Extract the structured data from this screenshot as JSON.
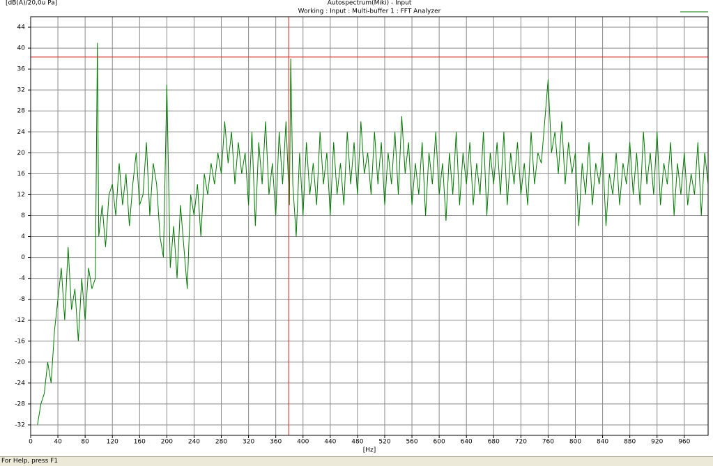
{
  "chart_data": {
    "type": "line",
    "unit_label": "[dB(A)/20,0u Pa]",
    "title": "Autospectrum(Miki) - Input",
    "subtitle": "Working : Input : Multi-buffer 1 : FFT Analyzer",
    "x_label": "[Hz]",
    "xlim": [
      0,
      995
    ],
    "ylim": [
      -34,
      46
    ],
    "xticks": [
      0,
      40,
      80,
      120,
      160,
      200,
      240,
      280,
      320,
      360,
      400,
      440,
      480,
      520,
      560,
      600,
      640,
      680,
      720,
      760,
      800,
      840,
      880,
      920,
      960
    ],
    "yticks": [
      -32,
      -28,
      -24,
      -20,
      -16,
      -12,
      -8,
      -4,
      0,
      4,
      8,
      12,
      16,
      20,
      24,
      28,
      32,
      36,
      40,
      44
    ],
    "grid": true,
    "cursor": {
      "x": 379,
      "y": 38.3,
      "color": "#d42020"
    },
    "x": [
      10,
      15,
      20,
      25,
      30,
      35,
      40,
      45,
      50,
      55,
      60,
      65,
      70,
      75,
      80,
      85,
      90,
      95,
      98,
      100,
      105,
      110,
      115,
      120,
      125,
      130,
      135,
      140,
      145,
      150,
      155,
      160,
      165,
      170,
      175,
      180,
      185,
      190,
      195,
      200,
      205,
      210,
      215,
      220,
      225,
      230,
      235,
      240,
      245,
      250,
      255,
      260,
      265,
      270,
      275,
      280,
      285,
      290,
      295,
      300,
      305,
      310,
      315,
      320,
      325,
      330,
      335,
      340,
      345,
      350,
      355,
      360,
      365,
      370,
      375,
      380,
      382,
      385,
      390,
      395,
      400,
      405,
      410,
      415,
      420,
      425,
      430,
      435,
      440,
      445,
      450,
      455,
      460,
      465,
      470,
      475,
      480,
      485,
      490,
      495,
      500,
      505,
      510,
      515,
      520,
      525,
      530,
      535,
      540,
      545,
      550,
      555,
      560,
      565,
      570,
      575,
      580,
      585,
      590,
      595,
      600,
      605,
      610,
      615,
      620,
      625,
      630,
      635,
      640,
      645,
      650,
      655,
      660,
      665,
      670,
      675,
      680,
      685,
      690,
      695,
      700,
      705,
      710,
      715,
      720,
      725,
      730,
      735,
      740,
      745,
      750,
      755,
      760,
      765,
      770,
      775,
      780,
      785,
      790,
      795,
      800,
      805,
      810,
      815,
      820,
      825,
      830,
      835,
      840,
      845,
      850,
      855,
      860,
      865,
      870,
      875,
      880,
      885,
      890,
      895,
      900,
      905,
      910,
      915,
      920,
      925,
      930,
      935,
      940,
      945,
      950,
      955,
      960,
      965,
      970,
      975,
      980,
      985,
      990,
      995
    ],
    "series": [
      {
        "color": "#007a00",
        "values": [
          -32,
          -28,
          -26,
          -20,
          -24,
          -14,
          -8,
          -2,
          -12,
          2,
          -10,
          -6,
          -16,
          -4,
          -12,
          -2,
          -6,
          -4,
          41,
          4,
          10,
          2,
          12,
          14,
          8,
          18,
          10,
          16,
          6,
          14,
          20,
          10,
          12,
          22,
          8,
          18,
          14,
          4,
          0,
          33,
          -2,
          6,
          -4,
          10,
          2,
          -6,
          12,
          8,
          14,
          4,
          16,
          12,
          18,
          14,
          20,
          16,
          26,
          18,
          24,
          14,
          22,
          16,
          20,
          10,
          24,
          6,
          22,
          14,
          26,
          12,
          18,
          8,
          24,
          14,
          26,
          10,
          38,
          14,
          4,
          20,
          8,
          22,
          12,
          18,
          10,
          24,
          14,
          20,
          8,
          22,
          12,
          18,
          10,
          24,
          14,
          22,
          12,
          26,
          16,
          20,
          12,
          24,
          14,
          22,
          10,
          20,
          14,
          24,
          12,
          27,
          16,
          22,
          10,
          18,
          12,
          22,
          8,
          20,
          14,
          24,
          12,
          18,
          7,
          20,
          12,
          24,
          10,
          20,
          14,
          22,
          10,
          18,
          12,
          24,
          8,
          20,
          14,
          22,
          12,
          24,
          10,
          20,
          14,
          22,
          12,
          18,
          10,
          24,
          14,
          20,
          18,
          26,
          34,
          20,
          24,
          16,
          26,
          14,
          22,
          16,
          20,
          6,
          18,
          12,
          22,
          10,
          18,
          14,
          20,
          6,
          16,
          12,
          20,
          10,
          18,
          14,
          22,
          12,
          20,
          10,
          24,
          14,
          20,
          12,
          24,
          10,
          18,
          14,
          22,
          8,
          18,
          12,
          20,
          10,
          16,
          12,
          22,
          8,
          20,
          14
        ]
      }
    ]
  },
  "status_bar": "For Help, press F1"
}
